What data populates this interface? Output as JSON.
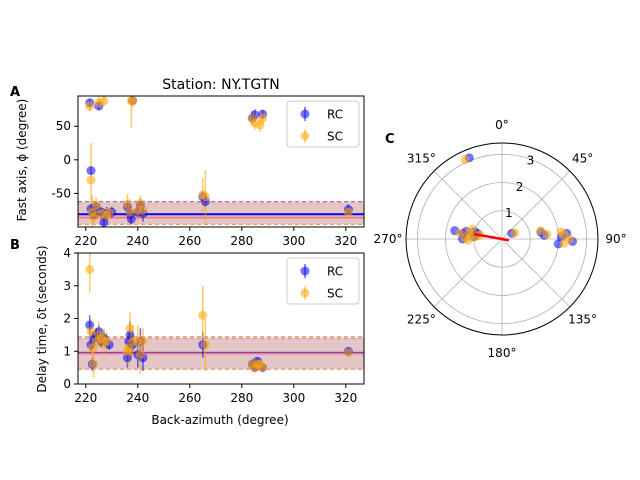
{
  "chart_data": [
    {
      "panel": "A",
      "type": "scatter",
      "title": "Station: NY.TGTN",
      "xlabel": "",
      "ylabel": "Fast axis, ϕ (degree)",
      "xlim": [
        217,
        327
      ],
      "ylim": [
        -100,
        95
      ],
      "xticks": [
        220,
        240,
        260,
        280,
        300,
        320
      ],
      "yticks": [
        -50,
        0,
        50
      ],
      "legend": {
        "position": "upper-right",
        "entries": [
          "RC",
          "SC"
        ]
      },
      "colors": {
        "RC": "#0000ff",
        "SC": "#ffa500"
      },
      "mean_lines": [
        {
          "series": "RC",
          "value": -81,
          "color": "#0000ff"
        },
        {
          "series": "SC",
          "value": -86,
          "color": "#f08080"
        }
      ],
      "bands": [
        {
          "from": -96,
          "to": -62,
          "color": "#9370db"
        },
        {
          "from": -96,
          "to": -64,
          "color": "#f4a460"
        }
      ],
      "series": [
        {
          "name": "RC",
          "points": [
            {
              "x": 221.5,
              "y": 85,
              "err": 5
            },
            {
              "x": 222,
              "y": -16,
              "err": 6
            },
            {
              "x": 222,
              "y": -73,
              "err": 8
            },
            {
              "x": 223,
              "y": -82,
              "err": 6
            },
            {
              "x": 224,
              "y": -70,
              "err": 8
            },
            {
              "x": 225,
              "y": 80,
              "err": 5
            },
            {
              "x": 226,
              "y": -78,
              "err": 8
            },
            {
              "x": 227,
              "y": -93,
              "err": 6
            },
            {
              "x": 228,
              "y": -80,
              "err": 10
            },
            {
              "x": 230,
              "y": -78,
              "err": 8
            },
            {
              "x": 236,
              "y": -70,
              "err": 10
            },
            {
              "x": 237,
              "y": -80,
              "err": 12
            },
            {
              "x": 237.5,
              "y": -88,
              "err": 8
            },
            {
              "x": 238,
              "y": 88,
              "err": 5
            },
            {
              "x": 240,
              "y": -78,
              "err": 8
            },
            {
              "x": 241,
              "y": -68,
              "err": 10
            },
            {
              "x": 242,
              "y": -80,
              "err": 12
            },
            {
              "x": 265,
              "y": -55,
              "err": 8
            },
            {
              "x": 266,
              "y": -62,
              "err": 8
            },
            {
              "x": 284,
              "y": 62,
              "err": 8
            },
            {
              "x": 285,
              "y": 67,
              "err": 8
            },
            {
              "x": 288,
              "y": 68,
              "err": 6
            },
            {
              "x": 321,
              "y": -74,
              "err": 8
            }
          ]
        },
        {
          "name": "SC",
          "points": [
            {
              "x": 221.5,
              "y": 80,
              "err": 8
            },
            {
              "x": 222,
              "y": -30,
              "err": 55
            },
            {
              "x": 222.5,
              "y": -78,
              "err": 25
            },
            {
              "x": 223,
              "y": -85,
              "err": 10
            },
            {
              "x": 224,
              "y": -68,
              "err": 12
            },
            {
              "x": 225,
              "y": 85,
              "err": 10
            },
            {
              "x": 226,
              "y": -80,
              "err": 10
            },
            {
              "x": 227,
              "y": 88,
              "err": 8
            },
            {
              "x": 228,
              "y": -82,
              "err": 10
            },
            {
              "x": 229,
              "y": -79,
              "err": 10
            },
            {
              "x": 236,
              "y": -66,
              "err": 15
            },
            {
              "x": 237,
              "y": -78,
              "err": 20
            },
            {
              "x": 237.5,
              "y": 88,
              "err": 40
            },
            {
              "x": 238,
              "y": 88,
              "err": 10
            },
            {
              "x": 240,
              "y": -76,
              "err": 15
            },
            {
              "x": 241,
              "y": -65,
              "err": 12
            },
            {
              "x": 242,
              "y": -75,
              "err": 12
            },
            {
              "x": 265,
              "y": -52,
              "err": 25
            },
            {
              "x": 266,
              "y": -55,
              "err": 40
            },
            {
              "x": 284,
              "y": 62,
              "err": 12
            },
            {
              "x": 285,
              "y": 55,
              "err": 10
            },
            {
              "x": 287,
              "y": 52,
              "err": 10
            },
            {
              "x": 288,
              "y": 62,
              "err": 10
            },
            {
              "x": 321,
              "y": -78,
              "err": 8
            }
          ]
        }
      ]
    },
    {
      "panel": "B",
      "type": "scatter",
      "xlabel": "Back-azimuth (degree)",
      "ylabel": "Delay time, δt (seconds)",
      "xlim": [
        217,
        327
      ],
      "ylim": [
        0,
        4
      ],
      "xticks": [
        220,
        240,
        260,
        280,
        300,
        320
      ],
      "yticks": [
        0,
        1,
        2,
        3,
        4
      ],
      "legend": {
        "position": "upper-right",
        "entries": [
          "RC",
          "SC"
        ]
      },
      "colors": {
        "RC": "#0000ff",
        "SC": "#ffa500"
      },
      "mean_lines": [
        {
          "series": "RC",
          "value": 0.95,
          "color": "#0000ff"
        },
        {
          "series": "SC",
          "value": 0.93,
          "color": "#f08080"
        }
      ],
      "bands": [
        {
          "from": 0.45,
          "to": 1.4,
          "color": "#9370db"
        },
        {
          "from": 0.45,
          "to": 1.45,
          "color": "#f4a460"
        }
      ],
      "series": [
        {
          "name": "RC",
          "points": [
            {
              "x": 221.5,
              "y": 1.8,
              "err": 0.3
            },
            {
              "x": 222,
              "y": 1.2,
              "err": 0.2
            },
            {
              "x": 222.5,
              "y": 0.6,
              "err": 0.2
            },
            {
              "x": 223,
              "y": 1.4,
              "err": 0.2
            },
            {
              "x": 224,
              "y": 1.5,
              "err": 0.2
            },
            {
              "x": 225,
              "y": 1.6,
              "err": 0.2
            },
            {
              "x": 226,
              "y": 1.3,
              "err": 0.2
            },
            {
              "x": 227,
              "y": 1.4,
              "err": 0.2
            },
            {
              "x": 229,
              "y": 1.2,
              "err": 0.15
            },
            {
              "x": 236,
              "y": 0.8,
              "err": 0.3
            },
            {
              "x": 236.5,
              "y": 1.3,
              "err": 0.3
            },
            {
              "x": 237,
              "y": 1.5,
              "err": 0.4
            },
            {
              "x": 238,
              "y": 1.2,
              "err": 0.3
            },
            {
              "x": 240,
              "y": 0.9,
              "err": 0.4
            },
            {
              "x": 241,
              "y": 1.3,
              "err": 0.4
            },
            {
              "x": 242,
              "y": 0.8,
              "err": 0.4
            },
            {
              "x": 265,
              "y": 1.2,
              "err": 0.4
            },
            {
              "x": 284,
              "y": 0.6,
              "err": 0.15
            },
            {
              "x": 285,
              "y": 0.5,
              "err": 0.1
            },
            {
              "x": 286,
              "y": 0.7,
              "err": 0.1
            },
            {
              "x": 288,
              "y": 0.5,
              "err": 0.1
            },
            {
              "x": 321,
              "y": 1.0,
              "err": 0.1
            }
          ]
        },
        {
          "name": "SC",
          "points": [
            {
              "x": 221.5,
              "y": 3.5,
              "err": 0.7
            },
            {
              "x": 222,
              "y": 1.6,
              "err": 0.4
            },
            {
              "x": 222.5,
              "y": 1.1,
              "err": 0.5
            },
            {
              "x": 223,
              "y": 0.6,
              "err": 0.4
            },
            {
              "x": 224,
              "y": 1.3,
              "err": 0.3
            },
            {
              "x": 225,
              "y": 1.5,
              "err": 0.4
            },
            {
              "x": 226,
              "y": 1.4,
              "err": 0.3
            },
            {
              "x": 227,
              "y": 1.3,
              "err": 0.4
            },
            {
              "x": 228,
              "y": 1.3,
              "err": 0.3
            },
            {
              "x": 236,
              "y": 1.0,
              "err": 0.4
            },
            {
              "x": 236.5,
              "y": 1.1,
              "err": 0.5
            },
            {
              "x": 237,
              "y": 1.7,
              "err": 0.5
            },
            {
              "x": 238,
              "y": 1.3,
              "err": 0.5
            },
            {
              "x": 240,
              "y": 1.3,
              "err": 0.5
            },
            {
              "x": 241,
              "y": 0.9,
              "err": 0.6
            },
            {
              "x": 242,
              "y": 1.3,
              "err": 0.4
            },
            {
              "x": 265,
              "y": 2.1,
              "err": 0.9
            },
            {
              "x": 266,
              "y": 1.2,
              "err": 0.8
            },
            {
              "x": 284,
              "y": 0.6,
              "err": 0.2
            },
            {
              "x": 285,
              "y": 0.5,
              "err": 0.15
            },
            {
              "x": 286,
              "y": 0.6,
              "err": 0.2
            },
            {
              "x": 287,
              "y": 0.6,
              "err": 0.15
            },
            {
              "x": 288,
              "y": 0.5,
              "err": 0.15
            },
            {
              "x": 321,
              "y": 0.95,
              "err": 0.1
            }
          ]
        }
      ]
    },
    {
      "panel": "C",
      "type": "scatter",
      "projection": "polar",
      "theta_zero": "north",
      "theta_direction": "clockwise",
      "theta_ticks": [
        "0°",
        "45°",
        "90°",
        "135°",
        "180°",
        "225°",
        "270°",
        "315°"
      ],
      "r_ticks": [
        "1",
        "2",
        "3"
      ],
      "rmax": 3.4,
      "colors": {
        "RC": "#0000ff",
        "SC": "#ffa500",
        "mean": "#ff0000"
      },
      "mean_vector": {
        "azimuth": 280,
        "length": 1.0
      },
      "series": [
        {
          "name": "RC",
          "points": [
            {
              "az": 338,
              "r": 3.1
            },
            {
              "az": 280,
              "r": 1.7
            },
            {
              "az": 282,
              "r": 1.3
            },
            {
              "az": 275,
              "r": 1.0
            },
            {
              "az": 285,
              "r": 1.0
            },
            {
              "az": 278,
              "r": 1.4
            },
            {
              "az": 270,
              "r": 1.4
            },
            {
              "az": 283,
              "r": 0.9
            },
            {
              "az": 88,
              "r": 2.1
            },
            {
              "az": 92,
              "r": 2.5
            },
            {
              "az": 85,
              "r": 2.3
            },
            {
              "az": 95,
              "r": 2.0
            },
            {
              "az": 80,
              "r": 1.4
            },
            {
              "az": 85,
              "r": 1.5
            },
            {
              "az": 60,
              "r": 0.4
            }
          ]
        },
        {
          "name": "SC",
          "points": [
            {
              "az": 335,
              "r": 3.1
            },
            {
              "az": 278,
              "r": 1.5
            },
            {
              "az": 282,
              "r": 1.2
            },
            {
              "az": 274,
              "r": 1.1
            },
            {
              "az": 288,
              "r": 1.1
            },
            {
              "az": 272,
              "r": 1.3
            },
            {
              "az": 268,
              "r": 1.2
            },
            {
              "az": 281,
              "r": 0.8
            },
            {
              "az": 276,
              "r": 0.9
            },
            {
              "az": 86,
              "r": 2.2
            },
            {
              "az": 90,
              "r": 2.4
            },
            {
              "az": 83,
              "r": 2.1
            },
            {
              "az": 94,
              "r": 2.2
            },
            {
              "az": 78,
              "r": 1.4
            },
            {
              "az": 84,
              "r": 1.6
            },
            {
              "az": 65,
              "r": 0.5
            }
          ]
        }
      ]
    }
  ]
}
